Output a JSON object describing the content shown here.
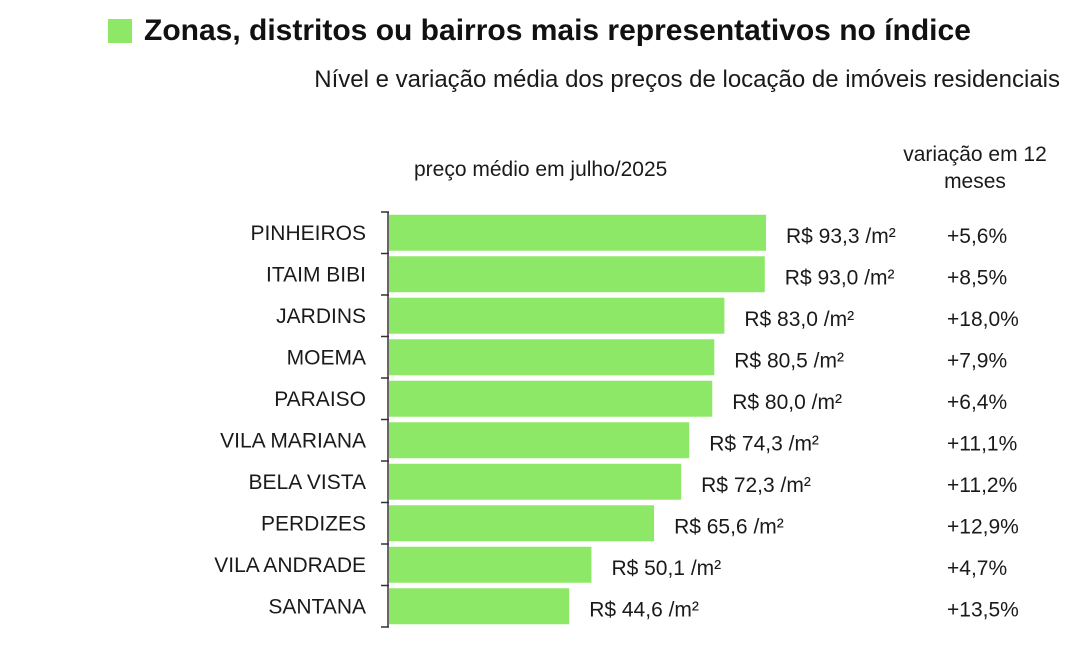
{
  "header": {
    "title": "Zonas, distritos ou bairros mais representativos no índice",
    "subtitle": "Nível e variação média dos preços de locação de imóveis residenciais"
  },
  "columns": {
    "price_header": "preço médio em julho/2025",
    "variation_header": "variação em 12 meses"
  },
  "colors": {
    "bar": "#8ee868",
    "title_square": "#8ee868",
    "axis": "#333333"
  },
  "chart_data": {
    "type": "bar",
    "orientation": "horizontal",
    "categories": [
      "PINHEIROS",
      "ITAIM BIBI",
      "JARDINS",
      "MOEMA",
      "PARAISO",
      "VILA MARIANA",
      "BELA VISTA",
      "PERDIZES",
      "VILA ANDRADE",
      "SANTANA"
    ],
    "values": [
      93.3,
      93.0,
      83.0,
      80.5,
      80.0,
      74.3,
      72.3,
      65.6,
      50.1,
      44.6
    ],
    "value_labels": [
      "R$ 93,3 /m²",
      "R$ 93,0 /m²",
      "R$ 83,0 /m²",
      "R$ 80,5 /m²",
      "R$ 80,0 /m²",
      "R$ 74,3 /m²",
      "R$ 72,3 /m²",
      "R$ 65,6 /m²",
      "R$ 50,1 /m²",
      "R$ 44,6 /m²"
    ],
    "variation_labels": [
      "+5,6%",
      "+8,5%",
      "+18,0%",
      "+7,9%",
      "+6,4%",
      "+11,1%",
      "+11,2%",
      "+12,9%",
      "+4,7%",
      "+13,5%"
    ],
    "xlim": [
      0,
      93.3
    ],
    "grid": false,
    "legend": "none"
  }
}
